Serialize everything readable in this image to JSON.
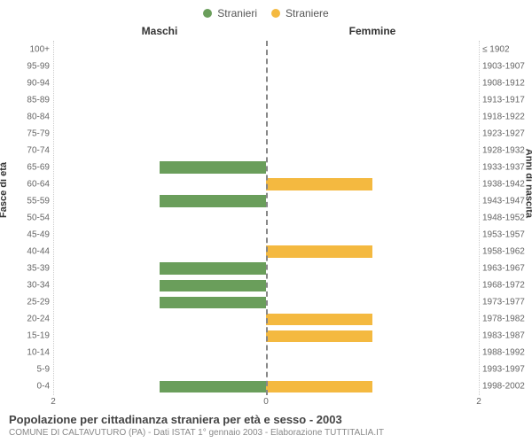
{
  "legend": {
    "male": {
      "label": "Stranieri",
      "color": "#6a9e5b"
    },
    "female": {
      "label": "Straniere",
      "color": "#f4b940"
    }
  },
  "column_titles": {
    "left": "Maschi",
    "right": "Femmine"
  },
  "axis_titles": {
    "left": "Fasce di età",
    "right": "Anni di nascita"
  },
  "chart": {
    "type": "population-pyramid",
    "xlim": 2,
    "x_ticks_left": [
      2,
      0
    ],
    "x_ticks_right": [
      0,
      2
    ],
    "bar_color_male": "#6a9e5b",
    "bar_color_female": "#f4b940",
    "background_color": "#ffffff",
    "grid_color": "#cccccc",
    "centerline_color": "#888888",
    "label_fontsize": 10,
    "title_fontsize": 12,
    "rows": [
      {
        "age": "100+",
        "birth": "≤ 1902",
        "m": 0,
        "f": 0
      },
      {
        "age": "95-99",
        "birth": "1903-1907",
        "m": 0,
        "f": 0
      },
      {
        "age": "90-94",
        "birth": "1908-1912",
        "m": 0,
        "f": 0
      },
      {
        "age": "85-89",
        "birth": "1913-1917",
        "m": 0,
        "f": 0
      },
      {
        "age": "80-84",
        "birth": "1918-1922",
        "m": 0,
        "f": 0
      },
      {
        "age": "75-79",
        "birth": "1923-1927",
        "m": 0,
        "f": 0
      },
      {
        "age": "70-74",
        "birth": "1928-1932",
        "m": 0,
        "f": 0
      },
      {
        "age": "65-69",
        "birth": "1933-1937",
        "m": 1,
        "f": 0
      },
      {
        "age": "60-64",
        "birth": "1938-1942",
        "m": 0,
        "f": 1
      },
      {
        "age": "55-59",
        "birth": "1943-1947",
        "m": 1,
        "f": 0
      },
      {
        "age": "50-54",
        "birth": "1948-1952",
        "m": 0,
        "f": 0
      },
      {
        "age": "45-49",
        "birth": "1953-1957",
        "m": 0,
        "f": 0
      },
      {
        "age": "40-44",
        "birth": "1958-1962",
        "m": 0,
        "f": 1
      },
      {
        "age": "35-39",
        "birth": "1963-1967",
        "m": 1,
        "f": 0
      },
      {
        "age": "30-34",
        "birth": "1968-1972",
        "m": 1,
        "f": 0
      },
      {
        "age": "25-29",
        "birth": "1973-1977",
        "m": 1,
        "f": 0
      },
      {
        "age": "20-24",
        "birth": "1978-1982",
        "m": 0,
        "f": 1
      },
      {
        "age": "15-19",
        "birth": "1983-1987",
        "m": 0,
        "f": 1
      },
      {
        "age": "10-14",
        "birth": "1988-1992",
        "m": 0,
        "f": 0
      },
      {
        "age": "5-9",
        "birth": "1993-1997",
        "m": 0,
        "f": 0
      },
      {
        "age": "0-4",
        "birth": "1998-2002",
        "m": 1,
        "f": 1
      }
    ]
  },
  "footer": {
    "title": "Popolazione per cittadinanza straniera per età e sesso - 2003",
    "subtitle": "COMUNE DI CALTAVUTURO (PA) - Dati ISTAT 1° gennaio 2003 - Elaborazione TUTTITALIA.IT"
  }
}
